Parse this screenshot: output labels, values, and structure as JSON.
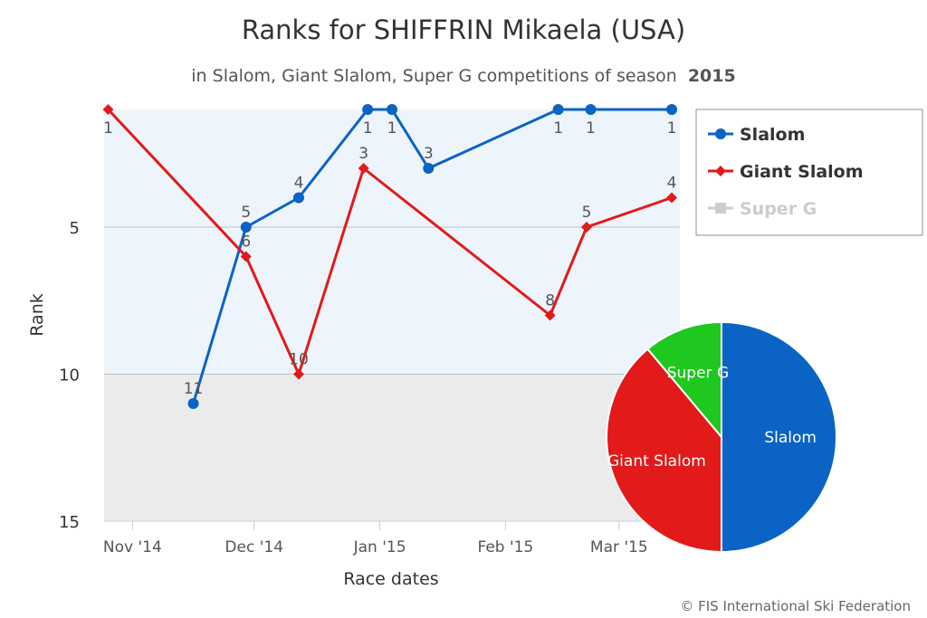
{
  "chart_data": {
    "type": "line",
    "title": "Ranks for SHIFFRIN Mikaela (USA)",
    "subtitle_prefix": "in Slalom, Giant Slalom, Super G competitions of season",
    "subtitle_season": "2015",
    "xlabel": "Race dates",
    "ylabel": "Rank",
    "x_ticks": [
      {
        "label": "Nov '14",
        "date": "2014-11-01"
      },
      {
        "label": "Dec '14",
        "date": "2014-12-01"
      },
      {
        "label": "Jan '15",
        "date": "2015-01-01"
      },
      {
        "label": "Feb '15",
        "date": "2015-02-01"
      },
      {
        "label": "Mar '15",
        "date": "2015-03-01"
      }
    ],
    "xlim": [
      "2014-10-25",
      "2015-03-16"
    ],
    "y_ticks": [
      5,
      10,
      15
    ],
    "ylim": [
      1,
      15
    ],
    "y_reversed": true,
    "bands": [
      {
        "from": 1,
        "to": 10,
        "color": "#edf4fb"
      },
      {
        "from": 10,
        "to": 15,
        "color": "#ebebeb"
      }
    ],
    "series": [
      {
        "name": "Slalom",
        "color": "#0b63c5",
        "marker": "circle",
        "points": [
          {
            "date": "2014-11-16",
            "rank": 11
          },
          {
            "date": "2014-11-29",
            "rank": 5
          },
          {
            "date": "2014-12-12",
            "rank": 4
          },
          {
            "date": "2014-12-29",
            "rank": 1
          },
          {
            "date": "2015-01-04",
            "rank": 1
          },
          {
            "date": "2015-01-13",
            "rank": 3
          },
          {
            "date": "2015-02-14",
            "rank": 1
          },
          {
            "date": "2015-02-22",
            "rank": 1
          },
          {
            "date": "2015-03-14",
            "rank": 1
          }
        ]
      },
      {
        "name": "Giant Slalom",
        "color": "#e21a1a",
        "marker": "diamond",
        "points": [
          {
            "date": "2014-10-26",
            "rank": 1
          },
          {
            "date": "2014-11-29",
            "rank": 6
          },
          {
            "date": "2014-12-12",
            "rank": 10
          },
          {
            "date": "2014-12-28",
            "rank": 3
          },
          {
            "date": "2015-02-12",
            "rank": 8
          },
          {
            "date": "2015-02-21",
            "rank": 5
          },
          {
            "date": "2015-03-14",
            "rank": 4
          }
        ]
      },
      {
        "name": "Super G",
        "color": "#cccccc",
        "marker": "square",
        "legend_inactive": true,
        "points": []
      }
    ],
    "legend": {
      "position": "top-right"
    },
    "pie": {
      "slices": [
        {
          "label": "Slalom",
          "value": 9,
          "color": "#0b63c5"
        },
        {
          "label": "Giant Slalom",
          "value": 7,
          "color": "#e21a1a"
        },
        {
          "label": "Super G",
          "value": 2,
          "color": "#1ec81e"
        }
      ]
    },
    "credits": "© FIS International Ski Federation"
  }
}
